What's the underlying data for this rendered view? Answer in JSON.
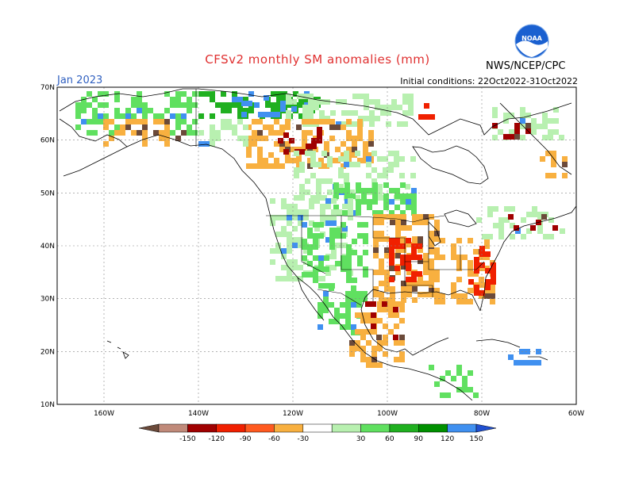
{
  "title": "CFSv2 monthly SM anomalies (mm)",
  "valid_month": "Jan 2023",
  "initial_conditions": "Initial conditions: 22Oct2022-31Oct2022",
  "agency": "NWS/NCEP/CPC",
  "logo_text": "NOAA",
  "lat_labels": [
    "70N",
    "60N",
    "50N",
    "40N",
    "30N",
    "20N",
    "10N"
  ],
  "lon_labels": [
    "160W",
    "140W",
    "120W",
    "100W",
    "80W",
    "60W"
  ],
  "colorbar": {
    "labels": [
      "-150",
      "-120",
      "-90",
      "-60",
      "-30",
      "30",
      "60",
      "90",
      "120",
      "150"
    ],
    "colors": [
      "#6b4a3a",
      "#c08a7a",
      "#a00000",
      "#f02000",
      "#ff5a20",
      "#f8b040",
      "#ffffff",
      "#b8f0b0",
      "#60e060",
      "#20b020",
      "#009000",
      "#4090f0",
      "#2050d0"
    ]
  },
  "map_colors": {
    "dry_extreme": "#6b4a3a",
    "dry_strong": "#a00000",
    "dry_mod": "#f02000",
    "dry_weak": "#f8b040",
    "wet_weak": "#b8f0b0",
    "wet_mod": "#60e060",
    "wet_strong": "#20b020",
    "wet_extreme": "#4090f0"
  }
}
